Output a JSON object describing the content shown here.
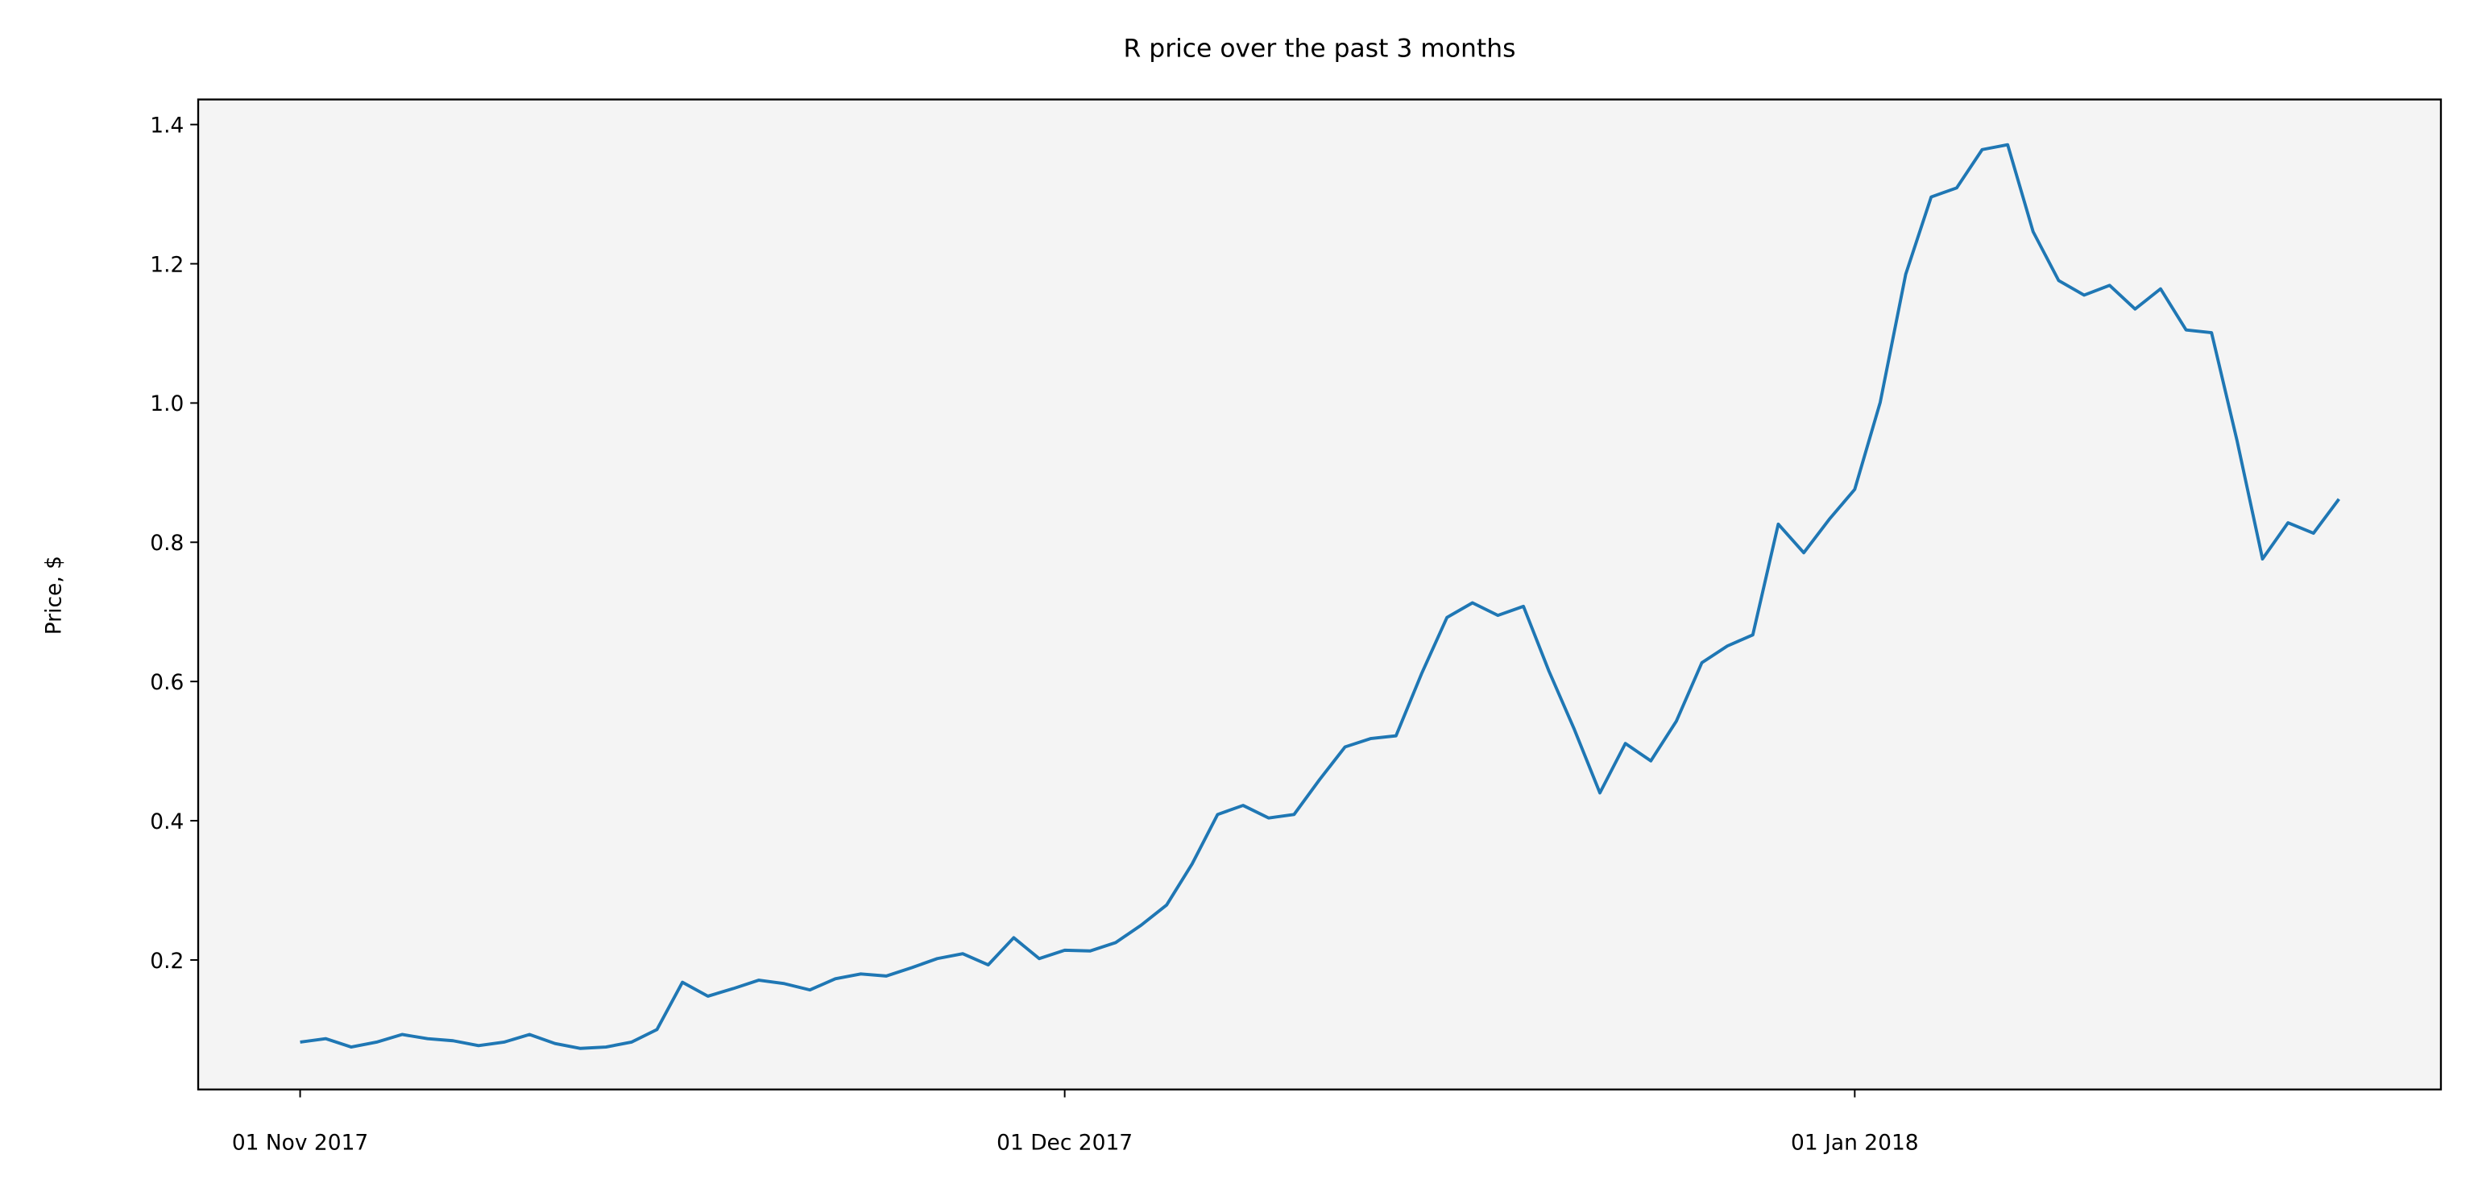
{
  "chart_data": {
    "type": "line",
    "title": "R price over the past 3 months",
    "y_label": "Price, $",
    "x": [
      "2017-11-01",
      "2017-11-02",
      "2017-11-03",
      "2017-11-04",
      "2017-11-05",
      "2017-11-06",
      "2017-11-07",
      "2017-11-08",
      "2017-11-09",
      "2017-11-10",
      "2017-11-11",
      "2017-11-12",
      "2017-11-13",
      "2017-11-14",
      "2017-11-15",
      "2017-11-16",
      "2017-11-17",
      "2017-11-18",
      "2017-11-19",
      "2017-11-20",
      "2017-11-21",
      "2017-11-22",
      "2017-11-23",
      "2017-11-24",
      "2017-11-25",
      "2017-11-26",
      "2017-11-27",
      "2017-11-28",
      "2017-11-29",
      "2017-11-30",
      "2017-12-01",
      "2017-12-02",
      "2017-12-03",
      "2017-12-04",
      "2017-12-05",
      "2017-12-06",
      "2017-12-07",
      "2017-12-08",
      "2017-12-09",
      "2017-12-10",
      "2017-12-11",
      "2017-12-12",
      "2017-12-13",
      "2017-12-14",
      "2017-12-15",
      "2017-12-16",
      "2017-12-17",
      "2017-12-18",
      "2017-12-19",
      "2017-12-20",
      "2017-12-21",
      "2017-12-22",
      "2017-12-23",
      "2017-12-24",
      "2017-12-25",
      "2017-12-26",
      "2017-12-27",
      "2017-12-28",
      "2017-12-29",
      "2017-12-30",
      "2017-12-31",
      "2018-01-01",
      "2018-01-02",
      "2018-01-03",
      "2018-01-04",
      "2018-01-05",
      "2018-01-06",
      "2018-01-07",
      "2018-01-08",
      "2018-01-09",
      "2018-01-10",
      "2018-01-11",
      "2018-01-12",
      "2018-01-13",
      "2018-01-14",
      "2018-01-15",
      "2018-01-16",
      "2018-01-17",
      "2018-01-18",
      "2018-01-19",
      "2018-01-20"
    ],
    "series": [
      {
        "color": "#1f77b4",
        "values": [
          0.082,
          0.087,
          0.075,
          0.082,
          0.093,
          0.087,
          0.084,
          0.077,
          0.082,
          0.093,
          0.08,
          0.073,
          0.075,
          0.082,
          0.1,
          0.168,
          0.148,
          0.159,
          0.171,
          0.166,
          0.157,
          0.173,
          0.18,
          0.177,
          0.189,
          0.202,
          0.209,
          0.193,
          0.232,
          0.202,
          0.214,
          0.213,
          0.225,
          0.25,
          0.279,
          0.338,
          0.409,
          0.422,
          0.404,
          0.409,
          0.459,
          0.506,
          0.518,
          0.522,
          0.611,
          0.692,
          0.713,
          0.695,
          0.708,
          0.615,
          0.531,
          0.44,
          0.511,
          0.486,
          0.543,
          0.627,
          0.651,
          0.667,
          0.826,
          0.785,
          0.833,
          0.876,
          1.001,
          1.185,
          1.296,
          1.309,
          1.364,
          1.371,
          1.246,
          1.176,
          1.155,
          1.169,
          1.135,
          1.164,
          1.105,
          1.101,
          0.946,
          0.776,
          0.828,
          0.813,
          0.862
        ]
      }
    ],
    "xlim": [
      "2017-10-28",
      "2018-01-24"
    ],
    "xticks": [
      {
        "value": "2017-11-01",
        "label": "01 Nov 2017"
      },
      {
        "value": "2017-12-01",
        "label": "01 Dec 2017"
      },
      {
        "value": "2018-01-01",
        "label": "01 Jan 2018"
      }
    ],
    "ylim": [
      0.014,
      1.436
    ],
    "yticks": [
      0.2,
      0.4,
      0.6,
      0.8,
      {
        "value": 1,
        "label": "1.0"
      },
      1.2,
      1.4
    ],
    "background": "#f4f4f4"
  }
}
